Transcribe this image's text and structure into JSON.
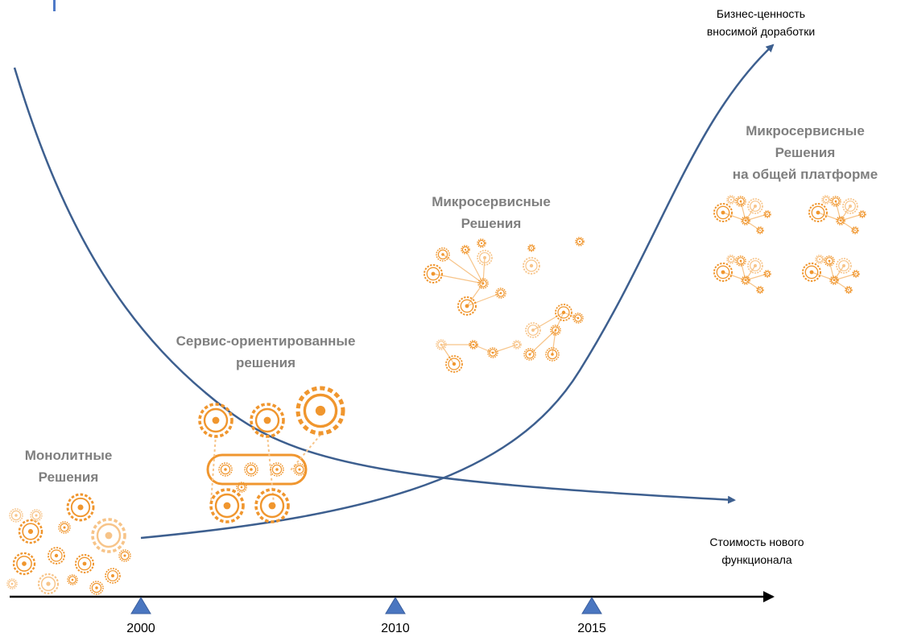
{
  "colors": {
    "curve": "#3d5f8f",
    "axis": "#000000",
    "marker": "#4a76c0",
    "gear": "#f0962e",
    "gear_light": "#f7c489",
    "label": "#7f7f7f"
  },
  "labels": {
    "monolith": "Монолитные\nРешения",
    "soa": "Сервис-ориентированные\nрешения",
    "micro": "Микросервисные\nРешения",
    "micro_platform": "Микросервисные\nРешения\nна общей платформе"
  },
  "curves": {
    "value": "Бизнес-ценность\nвносимой доработки",
    "cost": "Стоимость нового\nфункционала"
  },
  "timeline": {
    "years": [
      "2000",
      "2010",
      "2015"
    ]
  },
  "icons": {
    "monolith": "gear-cluster-icon",
    "soa": "gear-belt-icon",
    "micro": "gear-network-icon",
    "micro_platform": "gear-network-grid-icon"
  }
}
